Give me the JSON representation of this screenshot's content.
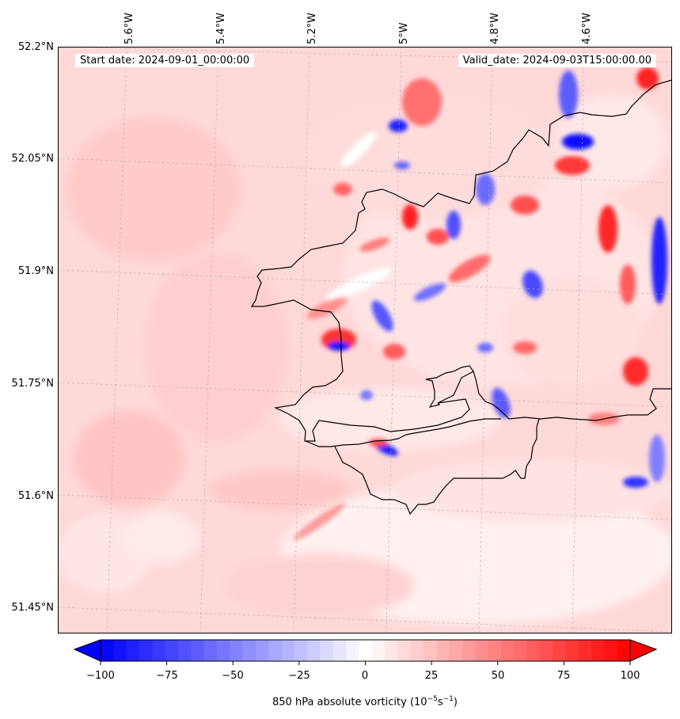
{
  "map": {
    "start_date": "Start date: 2024-09-01_00:00:00",
    "valid_date": "Valid_date: 2024-09-03T15:00:00.00",
    "lat_labels": [
      "52.2°N",
      "52.05°N",
      "51.9°N",
      "51.75°N",
      "51.6°N",
      "51.45°N"
    ],
    "lon_labels": [
      "5.6°W",
      "5.4°W",
      "5.2°W",
      "5°W",
      "4.8°W",
      "4.6°W"
    ],
    "field": "850 hPa absolute vorticity",
    "colors": {
      "negative_max": "#0000ff",
      "neutral": "#ffffff",
      "positive_max": "#ff0000",
      "coastline": "#000000",
      "gridline": "#b0b0b0"
    }
  },
  "colorbar": {
    "ticks": [
      "−100",
      "−75",
      "−50",
      "−25",
      "0",
      "25",
      "50",
      "75",
      "100"
    ],
    "tick_values": [
      -100,
      -75,
      -50,
      -25,
      0,
      25,
      50,
      75,
      100
    ],
    "range": [
      -100,
      100
    ],
    "levels": 41,
    "label_main": "850 hPa absolute vorticity (10",
    "label_exp1": "−5",
    "label_mid": "s",
    "label_exp2": "−1",
    "label_end": ")"
  }
}
